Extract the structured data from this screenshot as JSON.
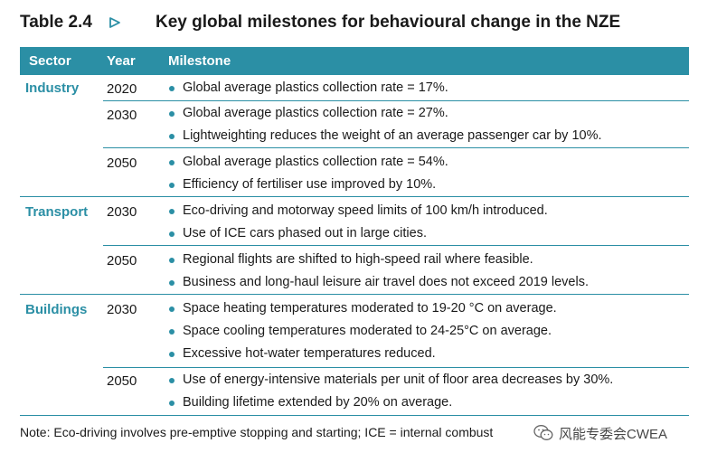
{
  "title": {
    "label": "Table 2.4",
    "arrow_icon": "triangle-right-outline-icon",
    "text": "Key global milestones for behavioural change in the NZE"
  },
  "colors": {
    "accent": "#2b8fa5",
    "header_text": "#ffffff",
    "body_text": "#1a1a1a"
  },
  "header": {
    "sector": "Sector",
    "year": "Year",
    "milestone": "Milestone"
  },
  "sectors": [
    {
      "name": "Industry",
      "rows": [
        {
          "year": "2020",
          "items": [
            "Global average plastics collection rate = 17%."
          ]
        },
        {
          "year": "2030",
          "items": [
            "Global average plastics collection rate = 27%.",
            "Lightweighting reduces the weight of an average passenger car by 10%."
          ]
        },
        {
          "year": "2050",
          "items": [
            "Global average plastics collection rate = 54%.",
            "Efficiency of fertiliser use improved by 10%."
          ]
        }
      ]
    },
    {
      "name": "Transport",
      "rows": [
        {
          "year": "2030",
          "items": [
            "Eco-driving and motorway speed limits of 100 km/h introduced.",
            "Use of ICE cars phased out in large cities."
          ]
        },
        {
          "year": "2050",
          "items": [
            "Regional flights are shifted to high-speed rail where feasible.",
            "Business and long-haul leisure air travel does not exceed 2019 levels."
          ]
        }
      ]
    },
    {
      "name": "Buildings",
      "rows": [
        {
          "year": "2030",
          "items": [
            "Space heating temperatures moderated to 19-20 °C on average.",
            "Space cooling temperatures moderated to 24-25°C on average.",
            "Excessive hot-water temperatures reduced."
          ]
        },
        {
          "year": "2050",
          "items": [
            "Use of energy-intensive materials per unit of floor area decreases by 30%.",
            "Building lifetime extended by 20% on average."
          ]
        }
      ]
    }
  ],
  "note": "Note: Eco-driving involves pre-emptive stopping and starting; ICE = internal combust",
  "watermark": {
    "icon": "wechat-logo-icon",
    "text": "风能专委会CWEA"
  }
}
